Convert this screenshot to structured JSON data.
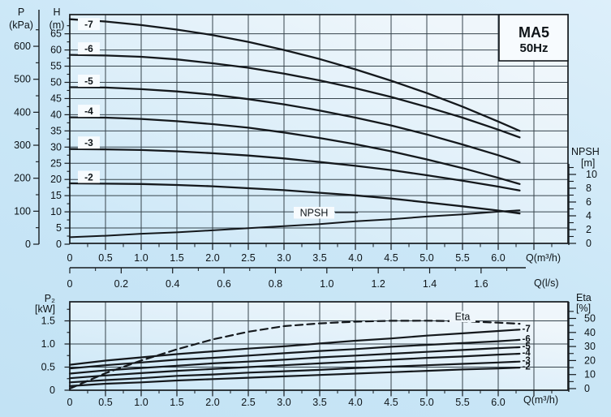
{
  "title_box": {
    "model": "MA5",
    "frequency": "50Hz"
  },
  "labels": {
    "pressure_line1": "P",
    "pressure_line2": "(kPa)",
    "head_line1": "H",
    "head_line2": "(m)",
    "npsh_line1": "NPSH",
    "npsh_line2": "[m]",
    "flow_label_top": "Q(m³/h)",
    "flow_label_ls": "Q(l/s)",
    "flow_label_bottom": "Q(m³/h)",
    "power_line1": "P₂",
    "power_line2": "[kW]",
    "eta_line1": "Eta",
    "eta_line2": "[%]"
  },
  "annotations": {
    "npsh_curve": "NPSH",
    "eta_curve": "Eta"
  },
  "colors": {
    "curve": "#14181c",
    "grid": "#37444c",
    "frame": "#161b1f",
    "plot_bg_low": "#cbe7f7",
    "plot_bg_high": "#eff6fb",
    "label_box_bg": "#f7fbfe"
  },
  "chart_data": [
    {
      "type": "line",
      "title": "MA5 50Hz head-capacity curves",
      "x_axis": {
        "label": "Q(m³/h)",
        "min": 0,
        "max": 6.98,
        "major_ticks": [
          0,
          0.5,
          1,
          1.5,
          2,
          2.5,
          3,
          3.5,
          4,
          4.5,
          5,
          5.5,
          6
        ],
        "minor_step": 0.25
      },
      "x_axis_ls": {
        "label": "Q(l/s)",
        "min": 0,
        "max": 1.7,
        "major_ticks": [
          0,
          0.2,
          0.4,
          0.6,
          0.8,
          1,
          1.2,
          1.4,
          1.6
        ],
        "minor_step": 0.1
      },
      "y_axis_head": {
        "label": "H (m)",
        "min": 0,
        "max": 70.9,
        "major_ticks": [
          0,
          5,
          10,
          15,
          20,
          25,
          30,
          35,
          40,
          45,
          50,
          55,
          60,
          65
        ],
        "minor_step": 2.5,
        "grid_step": 5
      },
      "y_axis_pressure": {
        "label": "P (kPa)",
        "min": 0,
        "max": 710,
        "major_ticks": [
          0,
          100,
          200,
          300,
          400,
          500,
          600
        ],
        "minor_step": 50
      },
      "y_axis_npsh": {
        "label": "NPSH [m]",
        "min": 0,
        "max": 11.5,
        "major_ticks": [
          0,
          2,
          4,
          6,
          8,
          10
        ],
        "minor_step": 1
      },
      "series": [
        {
          "name": "-7",
          "axis": "head",
          "points": [
            [
              0,
              69.5
            ],
            [
              0.5,
              68.8
            ],
            [
              1,
              67.7
            ],
            [
              1.5,
              66.3
            ],
            [
              2,
              64.6
            ],
            [
              2.5,
              62.5
            ],
            [
              3,
              60.0
            ],
            [
              3.5,
              57.2
            ],
            [
              4,
              54.0
            ],
            [
              4.5,
              50.5
            ],
            [
              5,
              46.7
            ],
            [
              5.5,
              42.5
            ],
            [
              6,
              37.9
            ],
            [
              6.3,
              35.0
            ]
          ]
        },
        {
          "name": "-6",
          "axis": "head",
          "points": [
            [
              0,
              58.5
            ],
            [
              0.5,
              58.3
            ],
            [
              1,
              57.9
            ],
            [
              1.5,
              57.1
            ],
            [
              2,
              55.9
            ],
            [
              2.5,
              54.5
            ],
            [
              3,
              52.7
            ],
            [
              3.5,
              50.6
            ],
            [
              4,
              48.2
            ],
            [
              4.5,
              45.5
            ],
            [
              5,
              42.4
            ],
            [
              5.5,
              39.1
            ],
            [
              6,
              35.4
            ],
            [
              6.3,
              33.0
            ]
          ]
        },
        {
          "name": "-5",
          "axis": "head",
          "points": [
            [
              0,
              48.5
            ],
            [
              0.5,
              48.4
            ],
            [
              1,
              47.9
            ],
            [
              1.5,
              47.2
            ],
            [
              2,
              46.2
            ],
            [
              2.5,
              44.8
            ],
            [
              3,
              43.2
            ],
            [
              3.5,
              41.3
            ],
            [
              4,
              39.1
            ],
            [
              4.5,
              36.7
            ],
            [
              5,
              33.9
            ],
            [
              5.5,
              30.8
            ],
            [
              6,
              27.5
            ],
            [
              6.3,
              25.3
            ]
          ]
        },
        {
          "name": "-4",
          "axis": "head",
          "points": [
            [
              0,
              39.2
            ],
            [
              0.5,
              39.1
            ],
            [
              1,
              38.7
            ],
            [
              1.5,
              38.0
            ],
            [
              2,
              37.1
            ],
            [
              2.5,
              36.0
            ],
            [
              3,
              34.5
            ],
            [
              3.5,
              32.8
            ],
            [
              4,
              30.9
            ],
            [
              4.5,
              28.7
            ],
            [
              5,
              26.2
            ],
            [
              5.5,
              23.5
            ],
            [
              6,
              20.5
            ],
            [
              6.3,
              18.6
            ]
          ]
        },
        {
          "name": "-3",
          "axis": "head",
          "points": [
            [
              0,
              29.4
            ],
            [
              0.5,
              29.3
            ],
            [
              1,
              29.1
            ],
            [
              1.5,
              28.7
            ],
            [
              2,
              28.1
            ],
            [
              2.5,
              27.4
            ],
            [
              3,
              26.5
            ],
            [
              3.5,
              25.4
            ],
            [
              4,
              24.2
            ],
            [
              4.5,
              22.9
            ],
            [
              5,
              21.3
            ],
            [
              5.5,
              19.6
            ],
            [
              6,
              17.8
            ],
            [
              6.3,
              16.6
            ]
          ]
        },
        {
          "name": "-2",
          "axis": "head",
          "points": [
            [
              0,
              18.8
            ],
            [
              0.5,
              18.7
            ],
            [
              1,
              18.6
            ],
            [
              1.5,
              18.3
            ],
            [
              2,
              17.9
            ],
            [
              2.5,
              17.3
            ],
            [
              3,
              16.7
            ],
            [
              3.5,
              15.9
            ],
            [
              4,
              15.1
            ],
            [
              4.5,
              14.1
            ],
            [
              5,
              12.9
            ],
            [
              5.5,
              11.7
            ],
            [
              6,
              10.4
            ],
            [
              6.3,
              9.5
            ]
          ]
        },
        {
          "name": "NPSH",
          "axis": "npsh",
          "points": [
            [
              0,
              0.9
            ],
            [
              0.5,
              1.1
            ],
            [
              1,
              1.4
            ],
            [
              1.5,
              1.6
            ],
            [
              2,
              1.9
            ],
            [
              2.5,
              2.2
            ],
            [
              3,
              2.5
            ],
            [
              3.5,
              2.8
            ],
            [
              4,
              3.2
            ],
            [
              4.5,
              3.5
            ],
            [
              5,
              3.9
            ],
            [
              5.5,
              4.2
            ],
            [
              6,
              4.6
            ],
            [
              6.3,
              4.8
            ]
          ]
        }
      ]
    },
    {
      "type": "line",
      "title": "MA5 50Hz power and efficiency curves",
      "x_axis": {
        "label": "Q(m³/h)",
        "min": 0,
        "max": 6.98,
        "major_ticks": [
          0,
          0.5,
          1,
          1.5,
          2,
          2.5,
          3,
          3.5,
          4,
          4.5,
          5,
          5.5,
          6
        ],
        "minor_step": 0.25
      },
      "y_axis_power": {
        "label": "P2 [kW]",
        "min": 0,
        "max": 1.91,
        "major_ticks": [
          0,
          0.5,
          1,
          1.5
        ],
        "minor_step": 0.25,
        "grid_step": 0.5
      },
      "y_axis_eta": {
        "label": "Eta [%]",
        "min": 0,
        "max": 60,
        "major_ticks": [
          0,
          10,
          20,
          30,
          40,
          50
        ],
        "minor_step": 5
      },
      "series": [
        {
          "name": "-7",
          "axis": "power",
          "points": [
            [
              0,
              0.55
            ],
            [
              0.5,
              0.64
            ],
            [
              1,
              0.71
            ],
            [
              1.5,
              0.78
            ],
            [
              2,
              0.84
            ],
            [
              2.5,
              0.9
            ],
            [
              3,
              0.95
            ],
            [
              3.5,
              1.01
            ],
            [
              4,
              1.07
            ],
            [
              4.5,
              1.12
            ],
            [
              5,
              1.18
            ],
            [
              5.5,
              1.23
            ],
            [
              6,
              1.28
            ],
            [
              6.3,
              1.31
            ]
          ]
        },
        {
          "name": "-6",
          "axis": "power",
          "points": [
            [
              0,
              0.47
            ],
            [
              0.5,
              0.54
            ],
            [
              1,
              0.6
            ],
            [
              1.5,
              0.66
            ],
            [
              2,
              0.7
            ],
            [
              2.5,
              0.75
            ],
            [
              3,
              0.8
            ],
            [
              3.5,
              0.85
            ],
            [
              4,
              0.89
            ],
            [
              4.5,
              0.94
            ],
            [
              5,
              0.98
            ],
            [
              5.5,
              1.02
            ],
            [
              6,
              1.06
            ],
            [
              6.3,
              1.09
            ]
          ]
        },
        {
          "name": "-5",
          "axis": "power",
          "points": [
            [
              0,
              0.36
            ],
            [
              0.5,
              0.43
            ],
            [
              1,
              0.48
            ],
            [
              1.5,
              0.53
            ],
            [
              2,
              0.58
            ],
            [
              2.5,
              0.62
            ],
            [
              3,
              0.66
            ],
            [
              3.5,
              0.71
            ],
            [
              4,
              0.75
            ],
            [
              4.5,
              0.79
            ],
            [
              5,
              0.83
            ],
            [
              5.5,
              0.87
            ],
            [
              6,
              0.91
            ],
            [
              6.3,
              0.93
            ]
          ]
        },
        {
          "name": "-4",
          "axis": "power",
          "points": [
            [
              0,
              0.26
            ],
            [
              0.5,
              0.32
            ],
            [
              1,
              0.37
            ],
            [
              1.5,
              0.42
            ],
            [
              2,
              0.46
            ],
            [
              2.5,
              0.5
            ],
            [
              3,
              0.54
            ],
            [
              3.5,
              0.58
            ],
            [
              4,
              0.62
            ],
            [
              4.5,
              0.66
            ],
            [
              5,
              0.7
            ],
            [
              5.5,
              0.73
            ],
            [
              6,
              0.77
            ],
            [
              6.3,
              0.79
            ]
          ]
        },
        {
          "name": "-3",
          "axis": "power",
          "points": [
            [
              0,
              0.17
            ],
            [
              0.5,
              0.22
            ],
            [
              1,
              0.26
            ],
            [
              1.5,
              0.31
            ],
            [
              2,
              0.34
            ],
            [
              2.5,
              0.38
            ],
            [
              3,
              0.41
            ],
            [
              3.5,
              0.44
            ],
            [
              4,
              0.48
            ],
            [
              4.5,
              0.51
            ],
            [
              5,
              0.54
            ],
            [
              5.5,
              0.57
            ],
            [
              6,
              0.6
            ],
            [
              6.3,
              0.62
            ]
          ]
        },
        {
          "name": "-2",
          "axis": "power",
          "points": [
            [
              0,
              0.09
            ],
            [
              0.5,
              0.14
            ],
            [
              1,
              0.17
            ],
            [
              1.5,
              0.21
            ],
            [
              2,
              0.24
            ],
            [
              2.5,
              0.27
            ],
            [
              3,
              0.3
            ],
            [
              3.5,
              0.33
            ],
            [
              4,
              0.36
            ],
            [
              4.5,
              0.39
            ],
            [
              5,
              0.42
            ],
            [
              5.5,
              0.45
            ],
            [
              6,
              0.47
            ],
            [
              6.3,
              0.49
            ]
          ]
        },
        {
          "name": "Eta",
          "axis": "eta",
          "dashed": true,
          "points": [
            [
              0,
              0
            ],
            [
              0.5,
              11
            ],
            [
              1,
              20
            ],
            [
              1.5,
              28
            ],
            [
              2,
              35
            ],
            [
              2.5,
              40.5
            ],
            [
              3,
              44.5
            ],
            [
              3.5,
              46.5
            ],
            [
              4,
              47.7
            ],
            [
              4.5,
              48.3
            ],
            [
              5,
              48.4
            ],
            [
              5.5,
              48
            ],
            [
              6,
              47
            ],
            [
              6.3,
              46.2
            ]
          ]
        }
      ]
    }
  ]
}
